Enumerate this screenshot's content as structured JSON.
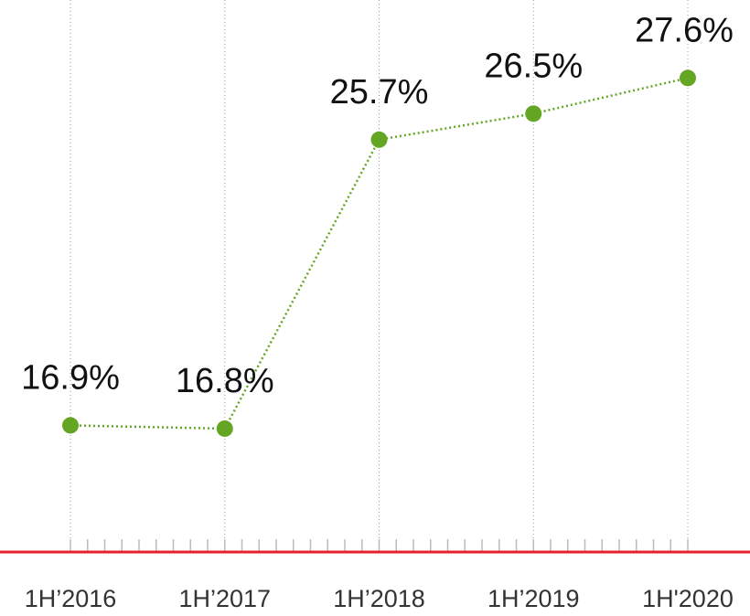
{
  "chart_data": {
    "type": "line",
    "categories": [
      "1H’2016",
      "1H’2017",
      "1H’2018",
      "1H’2019",
      "1H'2020"
    ],
    "series": [
      {
        "color": "#64a623",
        "values": [
          16.9,
          16.8,
          25.7,
          26.5,
          27.6
        ],
        "value_labels": [
          "16.9%",
          "16.8%",
          "25.7%",
          "26.5%",
          "27.6%"
        ]
      }
    ],
    "ylim": [
      13,
      30
    ],
    "grid": true,
    "axis_color": "#e8202a"
  }
}
